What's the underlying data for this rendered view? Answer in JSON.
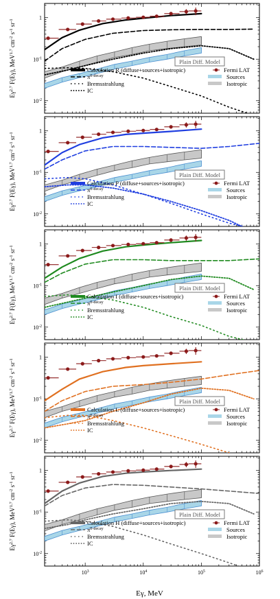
{
  "figure": {
    "xlabel": "Eγ, MeV",
    "ylabel": "Eγ^2.7 F(Eγ), MeV^1.7 cm^-2 s^-1 sr^-1",
    "xtick_labels": [
      "10^3",
      "10^4",
      "10^5",
      "10^6"
    ],
    "ytick_labels": [
      "10^-2",
      "10^-1",
      "1"
    ],
    "model_box": "Plain Diff. Model",
    "legend_fermi": "Fermi LAT",
    "legend_sources": "Sources",
    "legend_isotropic": "Isotropic",
    "legend_pi0": "π^0-decay",
    "legend_brems": "Bremsstrahlung",
    "legend_ic": "IC",
    "colors": {
      "fermi_points": "#8b1a1a",
      "sources_band": "#a9d6e8",
      "sources_edge": "#4a8fd0",
      "isotropic_band": "#c8c8c8",
      "isotropic_edge": "#555555"
    }
  },
  "chart_data": [
    {
      "type": "line",
      "panel": "R",
      "total_label": "Calculation R (diffuse+sources+isotropic)",
      "color": "#000000",
      "x_scale": "log",
      "y_scale": "log",
      "xlim": [
        200,
        1000000
      ],
      "ylim": [
        0.005,
        2.2
      ],
      "series": [
        {
          "name": "Calculation R (diffuse+sources+isotropic)",
          "x": [
            200,
            400,
            800,
            2000,
            5000,
            10000,
            30000,
            100000
          ],
          "y": [
            0.17,
            0.33,
            0.5,
            0.72,
            0.88,
            0.97,
            1.12,
            1.25
          ]
        },
        {
          "name": "π^0-decay",
          "x": [
            200,
            400,
            1000,
            3000,
            10000,
            30000,
            100000,
            300000,
            800000
          ],
          "y": [
            0.09,
            0.18,
            0.3,
            0.42,
            0.49,
            0.51,
            0.52,
            0.52,
            0.53
          ]
        },
        {
          "name": "Bremsstrahlung",
          "x": [
            200,
            500,
            1000,
            3000,
            10000,
            30000,
            100000,
            300000,
            1000000
          ],
          "y": [
            0.06,
            0.062,
            0.06,
            0.05,
            0.035,
            0.022,
            0.013,
            0.007,
            0.004
          ]
        },
        {
          "name": "IC",
          "x": [
            200,
            500,
            1000,
            3000,
            10000,
            30000,
            100000,
            300000,
            800000
          ],
          "y": [
            0.042,
            0.055,
            0.07,
            0.1,
            0.14,
            0.18,
            0.21,
            0.18,
            0.1
          ]
        }
      ]
    },
    {
      "type": "line",
      "panel": "P",
      "total_label": "Calculation P (diffuse+sources+isotropic)",
      "color": "#1f3ee0",
      "x_scale": "log",
      "y_scale": "log",
      "xlim": [
        200,
        1000000
      ],
      "ylim": [
        0.005,
        2.2
      ],
      "series": [
        {
          "name": "Calculation P (diffuse+sources+isotropic)",
          "x": [
            200,
            400,
            800,
            2000,
            5000,
            10000,
            30000,
            100000
          ],
          "y": [
            0.15,
            0.3,
            0.47,
            0.68,
            0.82,
            0.88,
            0.97,
            1.1
          ]
        },
        {
          "name": "π^0-decay",
          "x": [
            200,
            400,
            1000,
            3000,
            10000,
            30000,
            100000,
            300000,
            1000000
          ],
          "y": [
            0.12,
            0.2,
            0.33,
            0.42,
            0.42,
            0.4,
            0.38,
            0.42,
            0.5
          ]
        },
        {
          "name": "Bremsstrahlung",
          "x": [
            200,
            500,
            1000,
            3000,
            10000,
            30000,
            100000,
            300000,
            1000000
          ],
          "y": [
            0.07,
            0.075,
            0.07,
            0.05,
            0.03,
            0.018,
            0.01,
            0.006,
            0.004
          ]
        },
        {
          "name": "IC",
          "x": [
            200,
            500,
            1000,
            3000,
            10000,
            30000,
            100000,
            300000,
            700000
          ],
          "y": [
            0.045,
            0.05,
            0.05,
            0.042,
            0.03,
            0.02,
            0.012,
            0.007,
            0.004
          ]
        }
      ]
    },
    {
      "type": "line",
      "panel": "I",
      "total_label": "Calculation I (diffuse+sources+isotropic)",
      "color": "#1f8a1f",
      "x_scale": "log",
      "y_scale": "log",
      "xlim": [
        200,
        1000000
      ],
      "ylim": [
        0.005,
        2.2
      ],
      "series": [
        {
          "name": "Calculation I (diffuse+sources+isotropic)",
          "x": [
            200,
            400,
            800,
            2000,
            5000,
            10000,
            30000,
            100000
          ],
          "y": [
            0.15,
            0.28,
            0.45,
            0.68,
            0.86,
            0.95,
            1.08,
            1.22
          ]
        },
        {
          "name": "π^0-decay",
          "x": [
            200,
            400,
            1000,
            3000,
            10000,
            30000,
            100000,
            300000,
            1000000
          ],
          "y": [
            0.12,
            0.2,
            0.33,
            0.42,
            0.42,
            0.4,
            0.4,
            0.4,
            0.44
          ]
        },
        {
          "name": "Bremsstrahlung",
          "x": [
            200,
            500,
            1000,
            3000,
            10000,
            30000,
            100000,
            300000,
            1000000
          ],
          "y": [
            0.055,
            0.06,
            0.055,
            0.045,
            0.03,
            0.018,
            0.011,
            0.006,
            0.004
          ]
        },
        {
          "name": "IC",
          "x": [
            200,
            500,
            1000,
            3000,
            10000,
            30000,
            100000,
            300000,
            800000
          ],
          "y": [
            0.03,
            0.04,
            0.05,
            0.07,
            0.1,
            0.14,
            0.17,
            0.15,
            0.08
          ]
        }
      ]
    },
    {
      "type": "line",
      "panel": "L",
      "total_label": "Calculation L (diffuse+sources+isotropic)",
      "color": "#e07020",
      "x_scale": "log",
      "y_scale": "log",
      "xlim": [
        200,
        1000000
      ],
      "ylim": [
        0.005,
        2.2
      ],
      "series": [
        {
          "name": "Calculation L (diffuse+sources+isotropic)",
          "x": [
            200,
            400,
            800,
            2000,
            5000,
            10000,
            30000,
            100000
          ],
          "y": [
            0.09,
            0.17,
            0.3,
            0.45,
            0.57,
            0.63,
            0.7,
            0.78
          ]
        },
        {
          "name": "π^0-decay",
          "x": [
            200,
            400,
            1000,
            3000,
            10000,
            30000,
            100000,
            300000,
            1000000
          ],
          "y": [
            0.05,
            0.09,
            0.15,
            0.2,
            0.22,
            0.25,
            0.3,
            0.38,
            0.48
          ]
        },
        {
          "name": "Bremsstrahlung",
          "x": [
            200,
            500,
            1000,
            3000,
            10000,
            30000,
            100000,
            300000,
            1000000
          ],
          "y": [
            0.035,
            0.04,
            0.04,
            0.03,
            0.02,
            0.013,
            0.008,
            0.005,
            0.003
          ]
        },
        {
          "name": "IC",
          "x": [
            200,
            500,
            1000,
            3000,
            10000,
            30000,
            100000,
            300000,
            800000
          ],
          "y": [
            0.02,
            0.025,
            0.03,
            0.05,
            0.08,
            0.13,
            0.18,
            0.16,
            0.1
          ]
        }
      ]
    },
    {
      "type": "line",
      "panel": "H",
      "total_label": "Calculation H (diffuse+sources+isotropic)",
      "color": "#666666",
      "x_scale": "log",
      "y_scale": "log",
      "xlim": [
        200,
        1000000
      ],
      "ylim": [
        0.005,
        2.2
      ],
      "series": [
        {
          "name": "Calculation H (diffuse+sources+isotropic)",
          "x": [
            200,
            400,
            800,
            2000,
            5000,
            10000,
            30000,
            100000
          ],
          "y": [
            0.16,
            0.32,
            0.5,
            0.72,
            0.86,
            0.92,
            1.0,
            1.08
          ]
        },
        {
          "name": "π^0-decay",
          "x": [
            200,
            400,
            1000,
            3000,
            10000,
            30000,
            100000,
            300000,
            1000000
          ],
          "y": [
            0.14,
            0.25,
            0.38,
            0.46,
            0.44,
            0.4,
            0.36,
            0.32,
            0.28
          ]
        },
        {
          "name": "Bremsstrahlung",
          "x": [
            200,
            500,
            1000,
            3000,
            10000,
            30000,
            100000,
            300000,
            700000
          ],
          "y": [
            0.06,
            0.065,
            0.06,
            0.045,
            0.028,
            0.017,
            0.01,
            0.006,
            0.004
          ]
        },
        {
          "name": "IC",
          "x": [
            200,
            500,
            1000,
            3000,
            10000,
            30000,
            100000,
            300000,
            800000
          ],
          "y": [
            0.04,
            0.05,
            0.065,
            0.09,
            0.12,
            0.16,
            0.18,
            0.16,
            0.09
          ]
        }
      ]
    }
  ],
  "shared_data": {
    "fermi_lat": {
      "x": [
        230,
        500,
        900,
        1700,
        3000,
        5500,
        10000,
        17000,
        30000,
        55000,
        80000
      ],
      "x_err_low": [
        200,
        350,
        700,
        1300,
        2300,
        4200,
        7500,
        13000,
        23000,
        42000,
        60000
      ],
      "x_err_high": [
        350,
        700,
        1300,
        2300,
        4200,
        7500,
        13000,
        23000,
        42000,
        60000,
        100000
      ],
      "y": [
        0.32,
        0.52,
        0.7,
        0.83,
        0.92,
        0.98,
        1.02,
        1.08,
        1.25,
        1.4,
        1.45
      ],
      "y_err": [
        0.03,
        0.04,
        0.05,
        0.05,
        0.05,
        0.06,
        0.06,
        0.08,
        0.12,
        0.2,
        0.3
      ]
    },
    "isotropic_band": {
      "x": [
        200,
        400,
        800,
        1600,
        3200,
        6400,
        12800,
        25600,
        51200,
        100000
      ],
      "low": [
        0.035,
        0.05,
        0.065,
        0.085,
        0.11,
        0.13,
        0.16,
        0.18,
        0.2,
        0.22
      ],
      "high": [
        0.05,
        0.065,
        0.09,
        0.12,
        0.15,
        0.19,
        0.23,
        0.27,
        0.31,
        0.35
      ]
    },
    "sources_band": {
      "x": [
        200,
        400,
        800,
        1600,
        3200,
        6400,
        12800,
        25600,
        51200,
        100000
      ],
      "low": [
        0.02,
        0.028,
        0.036,
        0.045,
        0.058,
        0.07,
        0.085,
        0.1,
        0.12,
        0.14
      ],
      "high": [
        0.026,
        0.036,
        0.045,
        0.058,
        0.075,
        0.09,
        0.11,
        0.13,
        0.16,
        0.19
      ]
    }
  }
}
